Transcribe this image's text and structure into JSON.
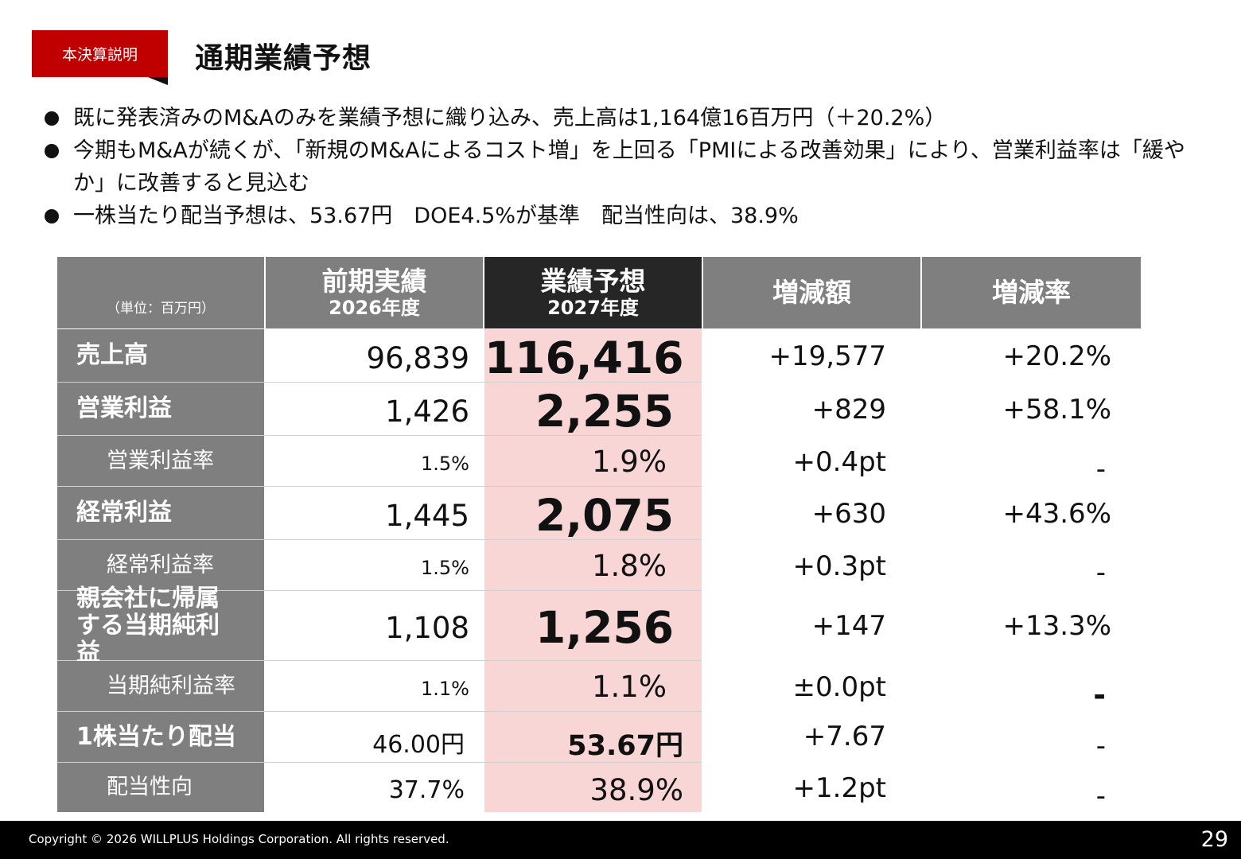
{
  "header": {
    "tag": "本決算説明",
    "title": "通期業績予想"
  },
  "bullets": [
    "既に発表済みのM&Aのみを業績予想に織り込み、売上高は1,164億16百万円（＋20.2%）",
    "今期もM&Aが続くが、「新規のM&Aによるコスト増」を上回る「PMIによる改善効果」により、営業利益率は「緩やか」に改善すると見込む",
    "一株当たり配当予想は、53.67円　DOE4.5%が基準　配当性向は、38.9%"
  ],
  "table": {
    "unit_label": "（単位：百万円）",
    "columns": [
      {
        "title": "前期実績",
        "sub": "2026年度"
      },
      {
        "title": "業績予想",
        "sub": "2027年度"
      },
      {
        "title": "増減額",
        "sub": ""
      },
      {
        "title": "増減率",
        "sub": ""
      }
    ],
    "rows": [
      {
        "label": "売上高",
        "prev": "96,839",
        "forecast": "116,416",
        "change": "+19,577",
        "rate": "+20.2%"
      },
      {
        "label": "営業利益",
        "prev": "1,426",
        "forecast": "2,255",
        "change": "+829",
        "rate": "+58.1%"
      },
      {
        "label": "営業利益率",
        "prev": "1.5%",
        "forecast": "1.9%",
        "change": "+0.4pt",
        "rate": "-"
      },
      {
        "label": "経常利益",
        "prev": "1,445",
        "forecast": "2,075",
        "change": "+630",
        "rate": "+43.6%"
      },
      {
        "label": "経常利益率",
        "prev": "1.5%",
        "forecast": "1.8%",
        "change": "+0.3pt",
        "rate": "-"
      },
      {
        "label": "親会社に帰属する当期純利益",
        "prev": "1,108",
        "forecast": "1,256",
        "change": "+147",
        "rate": "+13.3%"
      },
      {
        "label": "当期純利益率",
        "prev": "1.1%",
        "forecast": "1.1%",
        "change": "±0.0pt",
        "rate": "-"
      },
      {
        "label": "1株当たり配当",
        "prev": "46.00円",
        "forecast": "53.67円",
        "change": "+7.67",
        "rate": "-"
      },
      {
        "label": "配当性向",
        "prev": "37.7%",
        "forecast": "38.9%",
        "change": "+1.2pt",
        "rate": "-"
      }
    ]
  },
  "footer": {
    "copyright": "Copyright © 2026 WILLPLUS Holdings Corporation. All rights reserved.",
    "page": "29"
  },
  "colors": {
    "accent": "#c00000",
    "header_gray": "#7f7f7f",
    "header_dark": "#262626",
    "highlight": "#f9d6d6"
  }
}
